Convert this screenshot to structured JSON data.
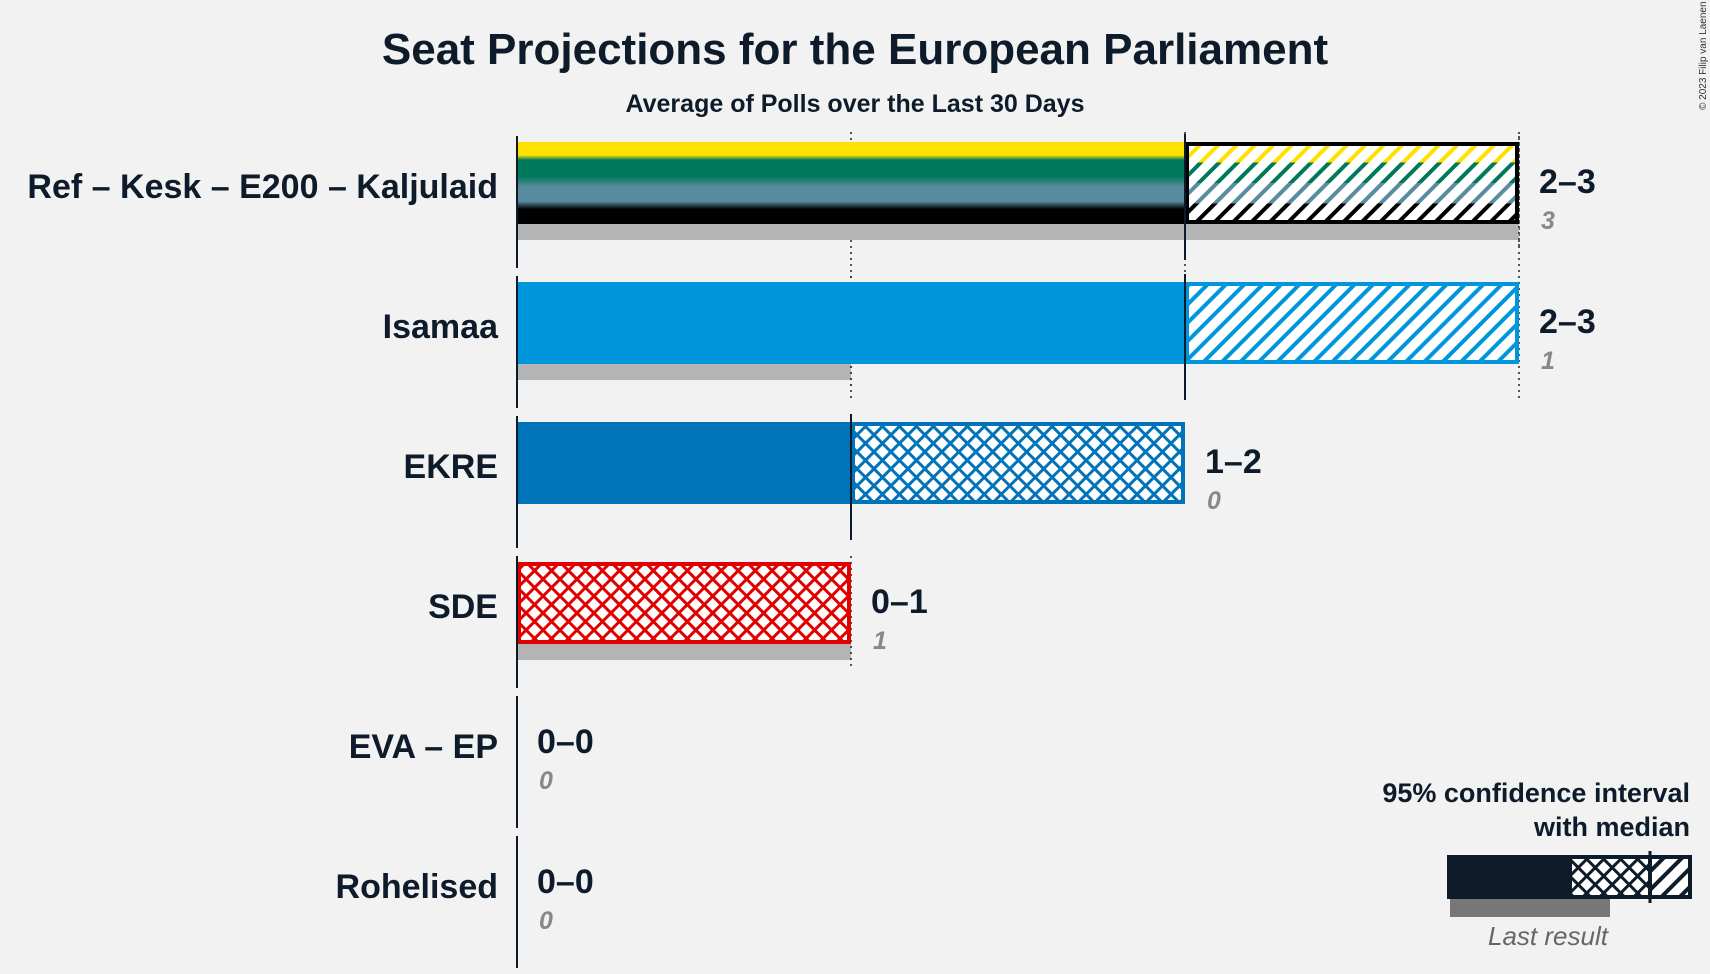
{
  "chart_data": {
    "type": "bar",
    "title": "Seat Projections for the European Parliament",
    "subtitle": "Average of Polls over the Last 30 Days",
    "copyright": "© 2023 Filip van Laenen",
    "x_range": [
      0,
      3
    ],
    "parties": [
      {
        "name": "Ref – Kesk – E200 – Kaljulaid",
        "range": "2–3",
        "low": 2,
        "median": 2,
        "high": 3,
        "last": 3,
        "last_label": "3",
        "colors": [
          "#ffe100",
          "#00785a",
          "#5a8ca0",
          "#000000"
        ]
      },
      {
        "name": "Isamaa",
        "range": "2–3",
        "low": 2,
        "median": 2,
        "high": 3,
        "last": 1,
        "last_label": "1",
        "colors": [
          "#0096dc"
        ]
      },
      {
        "name": "EKRE",
        "range": "1–2",
        "low": 1,
        "median": 1,
        "high": 2,
        "last": 0,
        "last_label": "0",
        "colors": [
          "#0073b9"
        ]
      },
      {
        "name": "SDE",
        "range": "0–1",
        "low": 0,
        "median": 0,
        "high": 1,
        "last": 1,
        "last_label": "1",
        "colors": [
          "#e10000"
        ]
      },
      {
        "name": "EVA – EP",
        "range": "0–0",
        "low": 0,
        "median": 0,
        "high": 0,
        "last": 0,
        "last_label": "0",
        "colors": [
          "#555555"
        ]
      },
      {
        "name": "Rohelised",
        "range": "0–0",
        "low": 0,
        "median": 0,
        "high": 0,
        "last": 0,
        "last_label": "0",
        "colors": [
          "#555555"
        ]
      }
    ],
    "legend": {
      "line1": "95% confidence interval",
      "line2": "with median",
      "last_result": "Last result"
    }
  }
}
